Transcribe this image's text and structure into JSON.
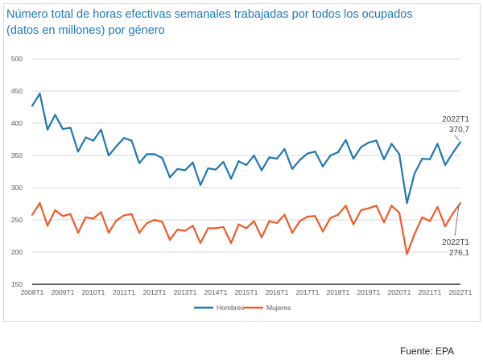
{
  "title_line1": "Número total de horas efectivas semanales trabajadas por todos los ocupados",
  "title_line2": "(datos en millones) por género",
  "source": "Fuente: EPA",
  "chart_data": {
    "type": "line",
    "title": "Número total de horas efectivas semanales trabajadas por todos los ocupados (datos en millones) por género",
    "ylim": [
      150,
      500
    ],
    "yticks": [
      150,
      200,
      250,
      300,
      350,
      400,
      450,
      500
    ],
    "xtick_labels": [
      "2008T1",
      "2009T1",
      "2010T1",
      "2011T1",
      "2012T1",
      "2013T1",
      "2014T1",
      "2015T1",
      "2016T1",
      "2017T1",
      "2018T1",
      "2019T1",
      "2020T1",
      "2021T1",
      "2022T1"
    ],
    "grid": "horizontal",
    "legend_position": "bottom",
    "series": [
      {
        "name": "Hombres",
        "color": "#1f77b4",
        "values": [
          427,
          446,
          390,
          413,
          391,
          393,
          356,
          378,
          373,
          390,
          350,
          364,
          377,
          373,
          338,
          352,
          352,
          346,
          316,
          329,
          327,
          339,
          304,
          330,
          328,
          340,
          314,
          341,
          335,
          350,
          327,
          347,
          345,
          360,
          329,
          343,
          353,
          356,
          333,
          350,
          355,
          374,
          345,
          363,
          370,
          373,
          344,
          368,
          352,
          276,
          322,
          345,
          344,
          368,
          335,
          354,
          370.7
        ],
        "end_label_period": "2022T1",
        "end_label_value": "370,7"
      },
      {
        "name": "Mujeres",
        "color": "#f05a28",
        "values": [
          258,
          276,
          241,
          265,
          256,
          259,
          230,
          254,
          252,
          262,
          230,
          249,
          257,
          259,
          230,
          245,
          250,
          247,
          219,
          235,
          233,
          241,
          214,
          237,
          237,
          239,
          214,
          243,
          237,
          248,
          223,
          248,
          245,
          258,
          230,
          248,
          255,
          256,
          232,
          253,
          258,
          272,
          243,
          265,
          268,
          272,
          246,
          272,
          261,
          197,
          228,
          254,
          248,
          270,
          240,
          260,
          276.1
        ],
        "end_label_period": "2022T1",
        "end_label_value": "276,1"
      }
    ]
  }
}
